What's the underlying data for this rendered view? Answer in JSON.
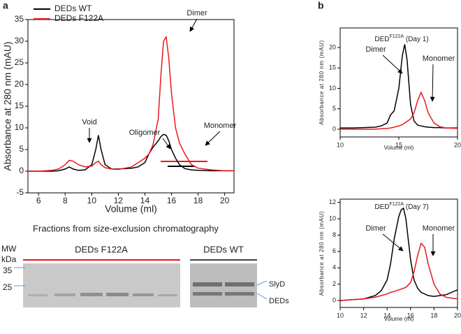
{
  "panel_labels": [
    "a",
    "b"
  ],
  "chart_data": [
    {
      "type": "line",
      "xlabel": "Volume (ml)",
      "ylabel": "Absorbance at 280 nm (mAU)",
      "xlim": [
        5.2,
        20.7
      ],
      "xticks": [
        6,
        8,
        10,
        12,
        14,
        16,
        18,
        20
      ],
      "ylim": [
        -5,
        35
      ],
      "yticks": [
        -5,
        0,
        5,
        10,
        15,
        20,
        25,
        30,
        35
      ],
      "x": [
        5.2,
        6,
        7,
        7.5,
        8,
        8.3,
        8.6,
        9,
        9.5,
        10,
        10.3,
        10.5,
        10.7,
        11,
        11.5,
        12,
        13,
        13.5,
        14,
        14.3,
        14.6,
        15,
        15.2,
        15.4,
        15.6,
        15.8,
        16,
        16.3,
        16.6,
        17,
        17.5,
        18,
        19,
        20,
        20.7
      ],
      "series": [
        {
          "name": "DEDs WT",
          "color": "#000000",
          "values": [
            0,
            0,
            0,
            0.1,
            0.5,
            1,
            0.5,
            0.2,
            0.3,
            1.5,
            5,
            8.3,
            5,
            1.5,
            0.5,
            0.5,
            0.7,
            1,
            2,
            4,
            5.5,
            7,
            8,
            8.5,
            8.3,
            7,
            5,
            3,
            1.5,
            0.6,
            0.3,
            0.2,
            0.1,
            0.1,
            0.1
          ]
        },
        {
          "name": "DEDs F122A",
          "color": "#e8191d",
          "values": [
            0,
            0,
            0.2,
            0.5,
            1.5,
            2.5,
            2.3,
            1.5,
            1,
            1.2,
            2,
            2.3,
            1.5,
            0.8,
            0.5,
            0.4,
            1,
            2,
            3,
            4,
            6,
            12,
            22,
            30,
            31,
            26,
            18,
            10,
            6.5,
            4,
            1.5,
            0.7,
            0.3,
            0.1,
            0.1
          ]
        }
      ],
      "annotations": [
        {
          "text": "Void",
          "color": "#2a74b5"
        },
        {
          "text": "Oligomer",
          "color": "#e6b800"
        },
        {
          "text": "Dimer",
          "color": "#2a74b5"
        },
        {
          "text": "Monomer",
          "color": "#2ca33a"
        }
      ]
    },
    {
      "type": "line",
      "title": [
        "DED",
        "F122A",
        " (Day 1)"
      ],
      "xlabel": "Volume (ml)",
      "ylabel": "Absorbance at 280 nm (mAU)",
      "xlim": [
        10,
        20
      ],
      "xticks": [
        10,
        15,
        20
      ],
      "ylim": [
        -1.9,
        24.8
      ],
      "yticks": [
        0,
        5,
        10,
        15,
        20
      ],
      "x": [
        10,
        11,
        12,
        13,
        13.5,
        14,
        14.3,
        14.6,
        15,
        15.3,
        15.5,
        15.7,
        16,
        16.3,
        16.6,
        16.9,
        17.2,
        17.5,
        18,
        18.5,
        19,
        20
      ],
      "series": [
        {
          "name": "Dimer",
          "color": "#000000",
          "values": [
            0.3,
            0.3,
            0.4,
            0.5,
            0.8,
            1.5,
            3.5,
            4.5,
            10,
            18,
            20.8,
            17,
            6,
            2,
            1,
            0.8,
            0.6,
            0.5,
            0.4,
            0.4,
            0.3,
            0.3
          ]
        },
        {
          "name": "Monomer",
          "color": "#e8191d",
          "values": [
            0,
            0,
            0,
            0,
            0.1,
            0.2,
            0.3,
            0.5,
            0.8,
            1.1,
            1.5,
            1.9,
            2.5,
            4,
            7,
            9,
            7,
            4,
            1.5,
            0.6,
            0.3,
            0.2
          ]
        }
      ]
    },
    {
      "type": "line",
      "title": [
        "DED",
        "F122A",
        " (Day 7)"
      ],
      "xlabel": "Volume (ml)",
      "ylabel": "Absorbance at 280 nm (mAU)",
      "xlim": [
        10,
        20
      ],
      "xticks": [
        10,
        12,
        14,
        16,
        18,
        20
      ],
      "ylim": [
        -0.85,
        12.4
      ],
      "yticks": [
        0,
        2,
        4,
        6,
        8,
        10,
        12
      ],
      "x": [
        10,
        11,
        12,
        13,
        13.5,
        14,
        14.3,
        14.6,
        15,
        15.2,
        15.4,
        15.6,
        16,
        16.3,
        16.6,
        16.9,
        17.2,
        17.5,
        18,
        18.5,
        19,
        20
      ],
      "series": [
        {
          "name": "Dimer",
          "color": "#000000",
          "values": [
            0,
            0.1,
            0.2,
            0.6,
            1.2,
            2.5,
            4.5,
            7.5,
            10.3,
            11.1,
            11.3,
            10,
            5,
            2.5,
            1.5,
            1,
            0.8,
            0.6,
            0.5,
            0.6,
            0.7,
            1.3
          ]
        },
        {
          "name": "Monomer",
          "color": "#e8191d",
          "values": [
            0,
            0.1,
            0.2,
            0.4,
            0.6,
            0.8,
            1,
            1.1,
            1.3,
            1.4,
            1.5,
            1.6,
            2.2,
            3.5,
            5.5,
            7,
            6.5,
            4.5,
            2,
            0.8,
            0.4,
            0.2
          ]
        }
      ]
    }
  ],
  "gel": {
    "title": "Fractions from size-exclusion chromatography",
    "mw": "MW",
    "unit": "kDa",
    "markers": [
      "35",
      "25"
    ],
    "lane_groups": [
      "DEDs F122A",
      "DEDs WT"
    ],
    "bands": [
      "SlyD",
      "DEDs"
    ]
  }
}
